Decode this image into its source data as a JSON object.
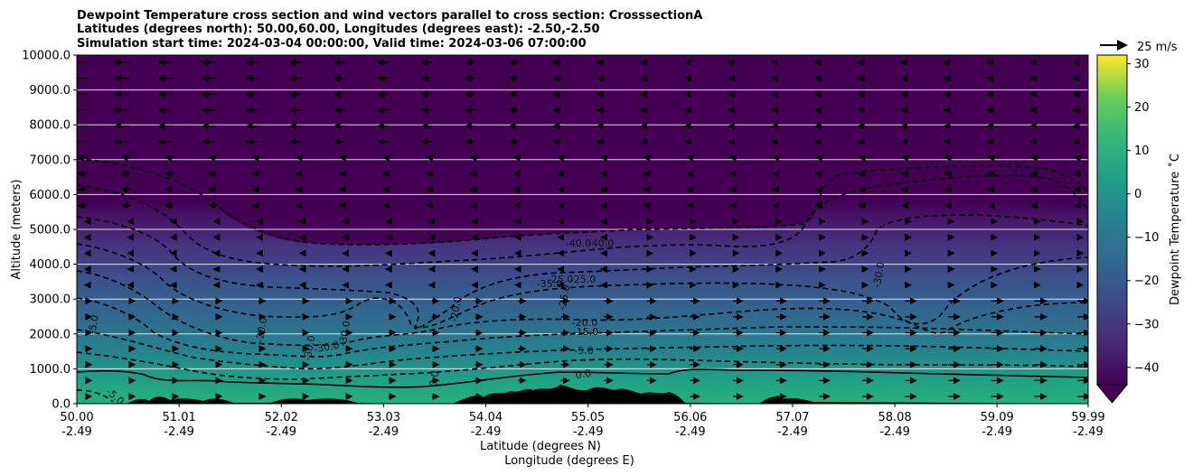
{
  "chart_data": {
    "type": "heatmap",
    "title_lines": [
      "Dewpoint Temperature cross section and wind vectors parallel to cross section: CrosssectionA",
      "Latitudes (degrees north): 50.00,60.00, Longitudes (degrees east): -2.50,-2.50",
      "Simulation start time: 2024-03-04 00:00:00, Valid time: 2024-03-06 07:00:00"
    ],
    "ylabel": "Altitude (meters)",
    "xlabel_lines": [
      "Latitude (degrees N)",
      "Longitude (degrees E)"
    ],
    "y_ticks": [
      "0.0",
      "1000.0",
      "2000.0",
      "3000.0",
      "4000.0",
      "5000.0",
      "6000.0",
      "7000.0",
      "8000.0",
      "9000.0",
      "10000.0"
    ],
    "ylim": [
      0,
      10000
    ],
    "x_ticks": [
      {
        "lat": "50.00",
        "lon": "-2.49"
      },
      {
        "lat": "51.01",
        "lon": "-2.49"
      },
      {
        "lat": "52.02",
        "lon": "-2.49"
      },
      {
        "lat": "53.03",
        "lon": "-2.49"
      },
      {
        "lat": "54.04",
        "lon": "-2.49"
      },
      {
        "lat": "55.05",
        "lon": "-2.49"
      },
      {
        "lat": "56.06",
        "lon": "-2.49"
      },
      {
        "lat": "57.07",
        "lon": "-2.49"
      },
      {
        "lat": "58.08",
        "lon": "-2.49"
      },
      {
        "lat": "59.09",
        "lon": "-2.49"
      },
      {
        "lat": "59.99",
        "lon": "-2.49"
      }
    ],
    "xlim": [
      50.0,
      59.99
    ],
    "colorbar": {
      "label": "Dewpoint Temperature ˚C",
      "ticks": [
        "−40",
        "−30",
        "−20",
        "−10",
        "0",
        "10",
        "20",
        "30"
      ],
      "range": [
        -44,
        32
      ],
      "extend": "min",
      "colormap": "viridis"
    },
    "quiver_key": "25 m/s",
    "grid": "horizontal",
    "contour_labels": [
      "-40.0",
      "-40.0",
      "-35.0",
      "-25.0",
      "-25.0",
      "-25.0",
      "-20.0",
      "-15.0",
      "-5.0",
      "0.0",
      "-20.0",
      "-30.0",
      "-30.0",
      "-20.0",
      "-30.0",
      "-5.0",
      "-5.0",
      "0.0",
      "-30.0"
    ],
    "colors": {
      "dry_top": "#440154",
      "moist_surface": "#21a585",
      "terrain": "#000000"
    }
  }
}
